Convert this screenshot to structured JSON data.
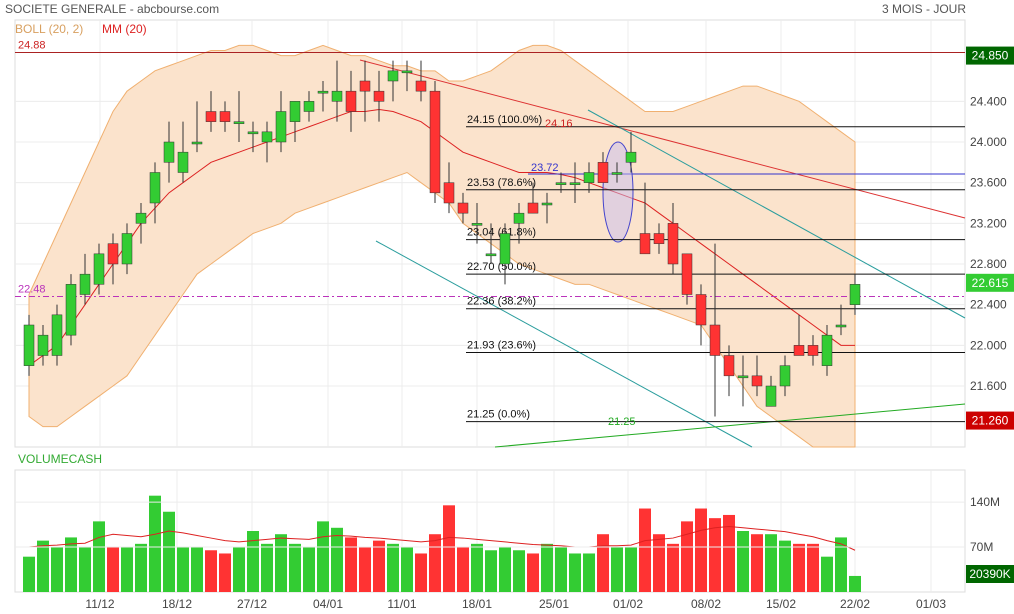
{
  "header": {
    "title": "SOCIETE GENERALE - abcbourse.com",
    "period": "3 MOIS - JOUR"
  },
  "legend": {
    "boll": "BOLL (20, 2)",
    "mm": "MM (20)",
    "volume": "VOLUMECASH"
  },
  "colors": {
    "up": "#33cc33",
    "down": "#ff3333",
    "boll_fill": "#fbe3cc",
    "boll_line": "#f0b070",
    "mm_line": "#dd2222",
    "channel": "#2a9d9d",
    "fib_line": "#111111",
    "level_high": "#006600",
    "level_low": "#cc0000",
    "current": "#33cc33",
    "dashed": "#bb33bb",
    "blue_line": "#3333cc"
  },
  "chart_data": {
    "type": "candlestick",
    "x_tick_labels": [
      "11/12",
      "18/12",
      "27/12",
      "04/01",
      "11/01",
      "18/01",
      "25/01",
      "01/02",
      "08/02",
      "15/02",
      "22/02",
      "01/03"
    ],
    "y_tick_labels": [
      "24.400",
      "24.000",
      "23.600",
      "23.200",
      "22.800",
      "22.400",
      "22.000",
      "21.600"
    ],
    "y_range": [
      21.0,
      25.2
    ],
    "candles": [
      {
        "o": 21.8,
        "h": 22.3,
        "l": 21.7,
        "c": 22.2
      },
      {
        "o": 21.9,
        "h": 22.2,
        "l": 21.8,
        "c": 22.1
      },
      {
        "o": 21.9,
        "h": 22.4,
        "l": 21.8,
        "c": 22.3
      },
      {
        "o": 22.1,
        "h": 22.7,
        "l": 22.0,
        "c": 22.6
      },
      {
        "o": 22.5,
        "h": 22.9,
        "l": 22.4,
        "c": 22.7
      },
      {
        "o": 22.6,
        "h": 23.0,
        "l": 22.5,
        "c": 22.9
      },
      {
        "o": 23.0,
        "h": 23.1,
        "l": 22.6,
        "c": 22.8
      },
      {
        "o": 22.8,
        "h": 23.2,
        "l": 22.7,
        "c": 23.1
      },
      {
        "o": 23.2,
        "h": 23.4,
        "l": 23.0,
        "c": 23.3
      },
      {
        "o": 23.4,
        "h": 23.8,
        "l": 23.2,
        "c": 23.7
      },
      {
        "o": 23.8,
        "h": 24.2,
        "l": 23.6,
        "c": 24.0
      },
      {
        "o": 23.7,
        "h": 24.2,
        "l": 23.6,
        "c": 23.9
      },
      {
        "o": 24.0,
        "h": 24.4,
        "l": 23.9,
        "c": 24.0
      },
      {
        "o": 24.3,
        "h": 24.5,
        "l": 24.1,
        "c": 24.2
      },
      {
        "o": 24.3,
        "h": 24.4,
        "l": 24.1,
        "c": 24.2
      },
      {
        "o": 24.2,
        "h": 24.5,
        "l": 24.0,
        "c": 24.2
      },
      {
        "o": 24.1,
        "h": 24.2,
        "l": 23.9,
        "c": 24.1
      },
      {
        "o": 24.0,
        "h": 24.2,
        "l": 23.8,
        "c": 24.1
      },
      {
        "o": 24.0,
        "h": 24.5,
        "l": 23.9,
        "c": 24.3
      },
      {
        "o": 24.2,
        "h": 24.4,
        "l": 24.0,
        "c": 24.4
      },
      {
        "o": 24.3,
        "h": 24.5,
        "l": 24.2,
        "c": 24.4
      },
      {
        "o": 24.5,
        "h": 24.6,
        "l": 24.3,
        "c": 24.5
      },
      {
        "o": 24.4,
        "h": 24.8,
        "l": 24.2,
        "c": 24.5
      },
      {
        "o": 24.5,
        "h": 24.7,
        "l": 24.1,
        "c": 24.3
      },
      {
        "o": 24.6,
        "h": 24.8,
        "l": 24.2,
        "c": 24.5
      },
      {
        "o": 24.5,
        "h": 24.7,
        "l": 24.2,
        "c": 24.4
      },
      {
        "o": 24.6,
        "h": 24.8,
        "l": 24.4,
        "c": 24.7
      },
      {
        "o": 24.7,
        "h": 24.8,
        "l": 24.5,
        "c": 24.7
      },
      {
        "o": 24.6,
        "h": 24.8,
        "l": 24.4,
        "c": 24.5
      },
      {
        "o": 24.5,
        "h": 24.6,
        "l": 23.4,
        "c": 23.5
      },
      {
        "o": 23.6,
        "h": 23.8,
        "l": 23.3,
        "c": 23.4
      },
      {
        "o": 23.4,
        "h": 23.5,
        "l": 23.2,
        "c": 23.3
      },
      {
        "o": 23.2,
        "h": 23.4,
        "l": 23.0,
        "c": 23.2
      },
      {
        "o": 22.9,
        "h": 23.2,
        "l": 22.8,
        "c": 22.9
      },
      {
        "o": 22.8,
        "h": 23.2,
        "l": 22.6,
        "c": 23.1
      },
      {
        "o": 23.2,
        "h": 23.4,
        "l": 23.0,
        "c": 23.3
      },
      {
        "o": 23.4,
        "h": 23.6,
        "l": 23.3,
        "c": 23.3
      },
      {
        "o": 23.4,
        "h": 23.5,
        "l": 23.2,
        "c": 23.4
      },
      {
        "o": 23.6,
        "h": 23.7,
        "l": 23.5,
        "c": 23.6
      },
      {
        "o": 23.6,
        "h": 23.8,
        "l": 23.4,
        "c": 23.6
      },
      {
        "o": 23.6,
        "h": 23.8,
        "l": 23.5,
        "c": 23.7
      },
      {
        "o": 23.8,
        "h": 23.9,
        "l": 23.6,
        "c": 23.6
      },
      {
        "o": 23.7,
        "h": 23.8,
        "l": 23.6,
        "c": 23.7
      },
      {
        "o": 23.8,
        "h": 24.1,
        "l": 23.7,
        "c": 23.9
      },
      {
        "o": 23.1,
        "h": 23.6,
        "l": 22.9,
        "c": 22.9
      },
      {
        "o": 23.1,
        "h": 23.2,
        "l": 22.9,
        "c": 23.0
      },
      {
        "o": 23.2,
        "h": 23.4,
        "l": 22.7,
        "c": 22.8
      },
      {
        "o": 22.9,
        "h": 22.9,
        "l": 22.4,
        "c": 22.5
      },
      {
        "o": 22.5,
        "h": 22.6,
        "l": 22.0,
        "c": 22.2
      },
      {
        "o": 22.2,
        "h": 23.0,
        "l": 21.3,
        "c": 21.9
      },
      {
        "o": 21.9,
        "h": 22.0,
        "l": 21.5,
        "c": 21.7
      },
      {
        "o": 21.7,
        "h": 21.9,
        "l": 21.4,
        "c": 21.7
      },
      {
        "o": 21.7,
        "h": 21.9,
        "l": 21.5,
        "c": 21.6
      },
      {
        "o": 21.4,
        "h": 21.7,
        "l": 21.4,
        "c": 21.6
      },
      {
        "o": 21.6,
        "h": 21.9,
        "l": 21.5,
        "c": 21.8
      },
      {
        "o": 22.0,
        "h": 22.3,
        "l": 21.9,
        "c": 21.9
      },
      {
        "o": 22.0,
        "h": 22.1,
        "l": 21.8,
        "c": 21.9
      },
      {
        "o": 21.8,
        "h": 22.2,
        "l": 21.7,
        "c": 22.1
      },
      {
        "o": 22.2,
        "h": 22.4,
        "l": 22.1,
        "c": 22.2
      },
      {
        "o": 22.4,
        "h": 22.7,
        "l": 22.3,
        "c": 22.6
      }
    ],
    "mm20": [
      21.8,
      21.9,
      22.0,
      22.2,
      22.4,
      22.6,
      22.8,
      23.0,
      23.2,
      23.35,
      23.5,
      23.6,
      23.7,
      23.8,
      23.85,
      23.9,
      23.95,
      24.0,
      24.05,
      24.1,
      24.15,
      24.2,
      24.25,
      24.3,
      24.3,
      24.32,
      24.3,
      24.25,
      24.2,
      24.1,
      24.0,
      23.9,
      23.85,
      23.8,
      23.75,
      23.7,
      23.7,
      23.7,
      23.68,
      23.65,
      23.6,
      23.55,
      23.5,
      23.45,
      23.4,
      23.3,
      23.2,
      23.1,
      23.0,
      22.9,
      22.8,
      22.7,
      22.6,
      22.5,
      22.4,
      22.3,
      22.2,
      22.1,
      22.0,
      22.0
    ],
    "boll_upper": [
      22.5,
      22.8,
      23.1,
      23.4,
      23.7,
      24.0,
      24.3,
      24.5,
      24.6,
      24.7,
      24.75,
      24.8,
      24.85,
      24.9,
      24.9,
      24.95,
      24.95,
      24.9,
      24.85,
      24.85,
      24.9,
      24.95,
      24.9,
      24.85,
      24.85,
      24.8,
      24.75,
      24.75,
      24.7,
      24.7,
      24.6,
      24.6,
      24.65,
      24.7,
      24.8,
      24.9,
      24.95,
      24.95,
      24.9,
      24.8,
      24.7,
      24.6,
      24.5,
      24.4,
      24.3,
      24.3,
      24.3,
      24.35,
      24.4,
      24.45,
      24.5,
      24.55,
      24.55,
      24.5,
      24.45,
      24.4,
      24.3,
      24.2,
      24.1,
      24.0
    ],
    "boll_lower": [
      21.3,
      21.2,
      21.2,
      21.3,
      21.4,
      21.5,
      21.6,
      21.7,
      21.9,
      22.1,
      22.3,
      22.5,
      22.7,
      22.8,
      22.9,
      23.0,
      23.1,
      23.15,
      23.2,
      23.3,
      23.35,
      23.4,
      23.45,
      23.5,
      23.55,
      23.6,
      23.65,
      23.7,
      23.6,
      23.5,
      23.4,
      23.2,
      23.1,
      23.0,
      22.9,
      22.8,
      22.75,
      22.7,
      22.65,
      22.6,
      22.6,
      22.55,
      22.5,
      22.45,
      22.4,
      22.35,
      22.3,
      22.25,
      22.2,
      22.0,
      21.8,
      21.6,
      21.4,
      21.3,
      21.2,
      21.1,
      21.0,
      21.0,
      21.0,
      21.0
    ],
    "fibonacci": [
      {
        "label": "24.15  (100.0%)",
        "value": 24.15
      },
      {
        "label": "23.53  (78.6%)",
        "value": 23.53
      },
      {
        "label": "23.04  (61.8%)",
        "value": 23.04
      },
      {
        "label": "22.70  (50.0%)",
        "value": 22.7
      },
      {
        "label": "22.36  (38.2%)",
        "value": 22.36
      },
      {
        "label": "21.93  (23.6%)",
        "value": 21.93
      },
      {
        "label": "21.25  (0.0%)",
        "value": 21.25
      }
    ],
    "annotations": {
      "high_level": "24.88",
      "high_level_value": 24.88,
      "dashed_level": "22.48",
      "dashed_level_value": 22.48,
      "top_label": "24.16",
      "mid_label": "23.72",
      "low_label": "21.25"
    },
    "right_badges": {
      "high": "24.850",
      "current": "22.615",
      "low": "21.260",
      "volume": "20390K"
    },
    "volume": {
      "y_tick_labels": [
        "140M",
        "70M"
      ],
      "y_range": [
        0,
        190
      ],
      "values": [
        55,
        80,
        70,
        85,
        70,
        110,
        70,
        70,
        75,
        150,
        125,
        70,
        70,
        65,
        60,
        70,
        95,
        75,
        90,
        75,
        70,
        110,
        100,
        85,
        70,
        80,
        75,
        70,
        60,
        90,
        135,
        70,
        75,
        65,
        70,
        65,
        60,
        75,
        70,
        60,
        60,
        90,
        70,
        70,
        130,
        90,
        75,
        110,
        130,
        115,
        120,
        95,
        90,
        90,
        80,
        75,
        75,
        55,
        85,
        25
      ],
      "ma": [
        70,
        72,
        73,
        75,
        76,
        85,
        90,
        88,
        86,
        90,
        95,
        92,
        88,
        84,
        80,
        78,
        80,
        82,
        84,
        83,
        82,
        86,
        88,
        87,
        85,
        84,
        82,
        80,
        78,
        80,
        85,
        84,
        82,
        80,
        78,
        76,
        74,
        73,
        72,
        70,
        70,
        72,
        72,
        73,
        80,
        82,
        84,
        90,
        96,
        100,
        102,
        100,
        98,
        96,
        94,
        90,
        86,
        80,
        75,
        65
      ]
    }
  }
}
